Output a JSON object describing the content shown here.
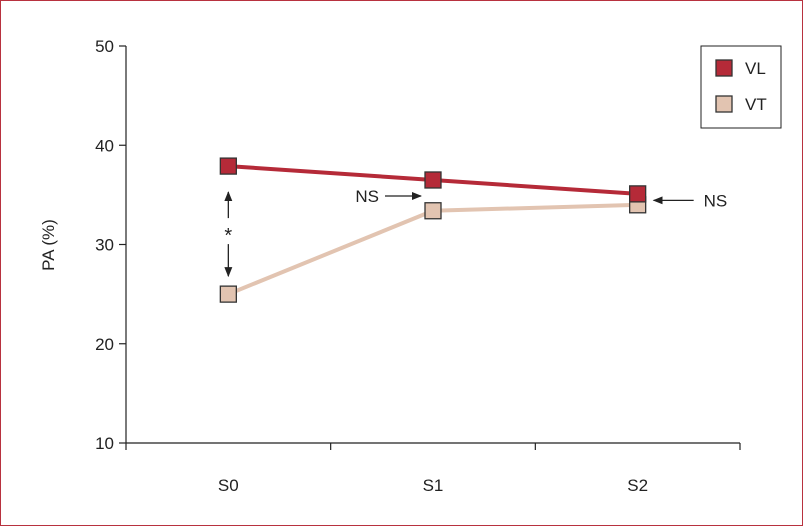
{
  "chart_data": {
    "type": "line",
    "categories": [
      "S0",
      "S1",
      "S2"
    ],
    "ylabel": "PA (%)",
    "xlabel": "",
    "ylim": [
      10,
      50
    ],
    "yticks": [
      10,
      20,
      30,
      40,
      50
    ],
    "grid": false,
    "legend_position": "top-right",
    "series": [
      {
        "name": "VL",
        "values": [
          37.9,
          36.5,
          35.1
        ],
        "color": "#b52a38"
      },
      {
        "name": "VT",
        "values": [
          25.0,
          33.4,
          34.0
        ],
        "color": "#e2c4b1"
      }
    ],
    "annotations": [
      {
        "text": "*",
        "category": "S0",
        "type": "double-arrow",
        "between": [
          "VL",
          "VT"
        ]
      },
      {
        "text": "NS",
        "category": "S1",
        "type": "arrow-from-left"
      },
      {
        "text": "NS",
        "category": "S2",
        "type": "arrow-from-right"
      }
    ]
  }
}
